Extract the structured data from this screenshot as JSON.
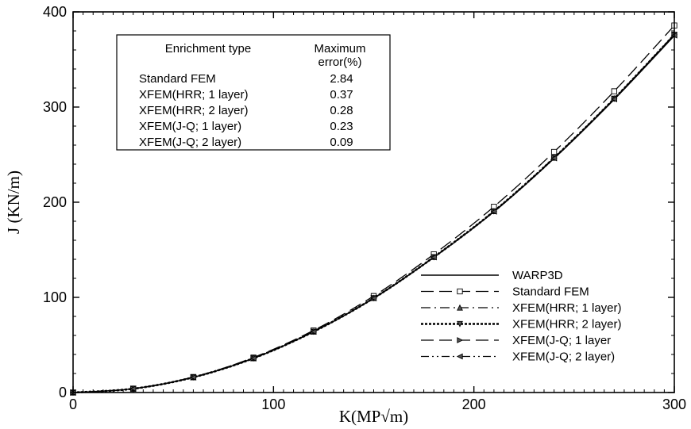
{
  "chart_data": {
    "type": "line",
    "xlabel": "K(MP√m)",
    "ylabel": "J (KN/m)",
    "xlim": [
      0,
      300
    ],
    "ylim": [
      0,
      400
    ],
    "xticks": [
      "0",
      "100",
      "200",
      "300"
    ],
    "yticks": [
      "0",
      "100",
      "200",
      "300",
      "400"
    ],
    "grid": false,
    "legend_position": "bottom-right",
    "x": [
      0,
      30,
      60,
      90,
      120,
      150,
      180,
      210,
      240,
      270,
      300
    ],
    "series": [
      {
        "name": "WARP3D",
        "marker": "none",
        "dash": "solid",
        "values": [
          0,
          4,
          16,
          36,
          64,
          99,
          142,
          190,
          246,
          308,
          375
        ]
      },
      {
        "name": "Standard FEM",
        "marker": "square",
        "dash": "long-dash",
        "values": [
          0,
          4.1,
          16.3,
          36.8,
          65.3,
          101.4,
          145.3,
          195.3,
          252.9,
          316.6,
          385.7
        ]
      },
      {
        "name": "XFEM(HRR; 1 layer)",
        "marker": "triangle-up",
        "dash": "dash-dot",
        "values": [
          0,
          4,
          16,
          36,
          64,
          99.3,
          142.4,
          190.6,
          246.8,
          309,
          376.4
        ]
      },
      {
        "name": "XFEM(HRR; 2 layer)",
        "marker": "triangle-down",
        "dash": "dotted-thick",
        "values": [
          0,
          4,
          16,
          36,
          64,
          99.2,
          142.3,
          190.5,
          246.6,
          308.8,
          376
        ]
      },
      {
        "name": "XFEM(J-Q; 1 layer",
        "marker": "triangle-right",
        "dash": "long-dash",
        "values": [
          0,
          4,
          16,
          36,
          64,
          99.2,
          142.3,
          190.4,
          246.5,
          308.7,
          375.9
        ]
      },
      {
        "name": "XFEM(J-Q; 2 layer)",
        "marker": "triangle-left",
        "dash": "dash-dot-dot",
        "values": [
          0,
          4,
          16,
          36,
          64,
          99.1,
          142.1,
          190.2,
          246.2,
          308.3,
          375.3
        ]
      }
    ],
    "error_table": {
      "header": [
        "Enrichment type",
        "Maximum error(%)"
      ],
      "header_lines": [
        "Enrichment type",
        "Maximum",
        "error(%)"
      ],
      "rows": [
        {
          "type": "Standard FEM",
          "error": "2.84"
        },
        {
          "type": "XFEM(HRR; 1 layer)",
          "error": "0.37"
        },
        {
          "type": "XFEM(HRR; 2 layer)",
          "error": "0.28"
        },
        {
          "type": "XFEM(J-Q; 1 layer)",
          "error": "0.23"
        },
        {
          "type": "XFEM(J-Q; 2 layer)",
          "error": "0.09"
        }
      ]
    }
  }
}
